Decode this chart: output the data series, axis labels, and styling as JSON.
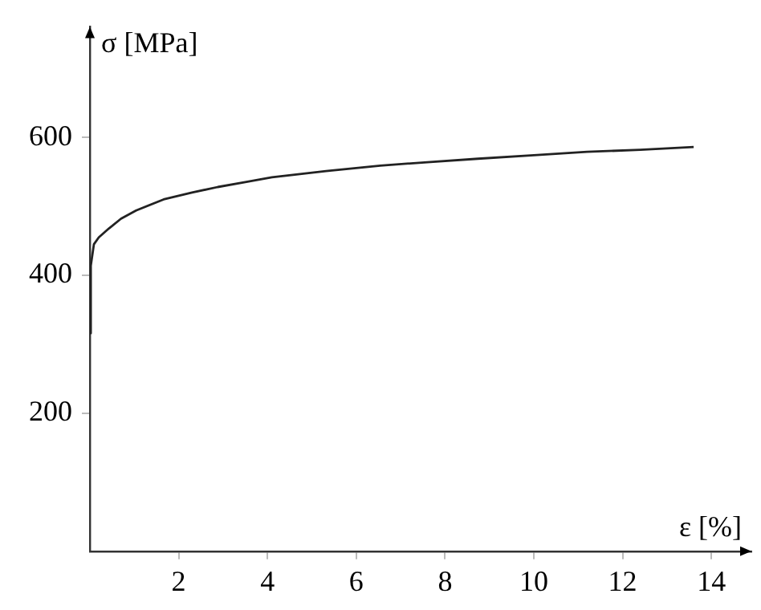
{
  "chart_data": {
    "type": "line",
    "xlabel": "ε [%]",
    "ylabel": "σ [MPa]",
    "xlim": [
      0,
      14.9
    ],
    "ylim": [
      0,
      760
    ],
    "xticks": [
      2,
      4,
      6,
      8,
      10,
      12,
      14
    ],
    "yticks": [
      200,
      400,
      600
    ],
    "grid": false,
    "legend": false,
    "marker": "none",
    "line_style": "solid",
    "series": [
      {
        "color": "#222222",
        "x": [
          0,
          0.02,
          0.09,
          0.2,
          0.43,
          0.7,
          1.04,
          1.66,
          2.3,
          2.88,
          3.5,
          4.1,
          5.32,
          6.54,
          7.6,
          8.74,
          10,
          11.2,
          12.4,
          13.6
        ],
        "values": [
          316,
          414,
          445,
          455,
          468,
          482,
          494,
          510,
          520,
          528,
          535,
          542,
          551,
          559,
          564,
          569,
          574,
          579,
          582,
          586
        ]
      }
    ]
  }
}
